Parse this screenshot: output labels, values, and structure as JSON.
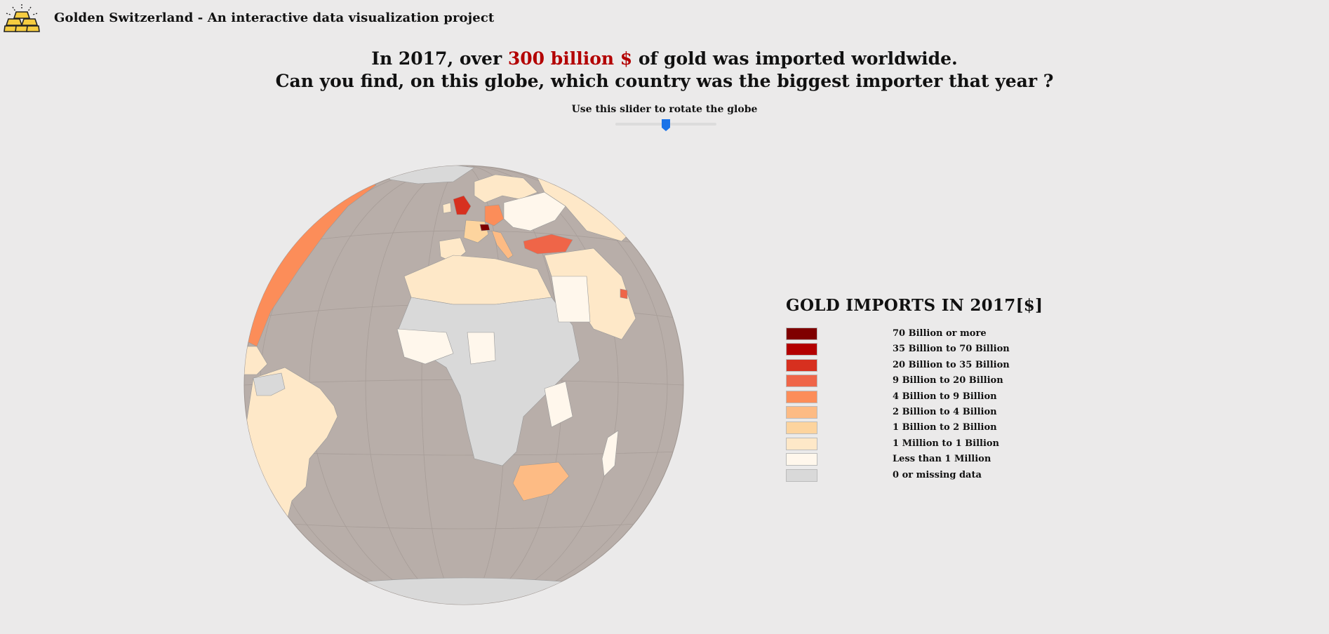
{
  "app": {
    "title": "Golden Switzerland - An interactive data visualization project",
    "logo_icon": "gold-bars-icon"
  },
  "headline": {
    "line1_prefix": "In 2017, over ",
    "line1_highlight": "300 billion $",
    "line1_suffix": " of gold was imported worldwide.",
    "line2": "Can you find, on this globe, which country was the biggest importer that year ?",
    "highlight_color": "#b30000"
  },
  "slider": {
    "label": "Use this slider to rotate the globe",
    "value_fraction": 0.5,
    "thumb_color": "#1a73e8"
  },
  "globe": {
    "ocean_color": "#b8aea9",
    "missing_color": "#d9d9d9",
    "graticule_color": "#a79d98"
  },
  "legend": {
    "title": "GOLD IMPORTS IN 2017[$]",
    "items": [
      {
        "label": "70 Billion or more",
        "color": "#7f0000"
      },
      {
        "label": "35 Billion to 70 Billion",
        "color": "#b30000"
      },
      {
        "label": "20 Billion to 35 Billion",
        "color": "#d7301f"
      },
      {
        "label": "9 Billion to 20 Billion",
        "color": "#ef6548"
      },
      {
        "label": "4 Billion to 9 Billion",
        "color": "#fc8d59"
      },
      {
        "label": "2 Billion to 4 Billion",
        "color": "#fdbb84"
      },
      {
        "label": "1 Billion to 2 Billion",
        "color": "#fdd49e"
      },
      {
        "label": "1 Million to 1 Billion",
        "color": "#fee8c8"
      },
      {
        "label": "Less than 1 Million",
        "color": "#fff7ec"
      },
      {
        "label": "0 or missing data",
        "color": "#d9d9d9"
      }
    ]
  }
}
